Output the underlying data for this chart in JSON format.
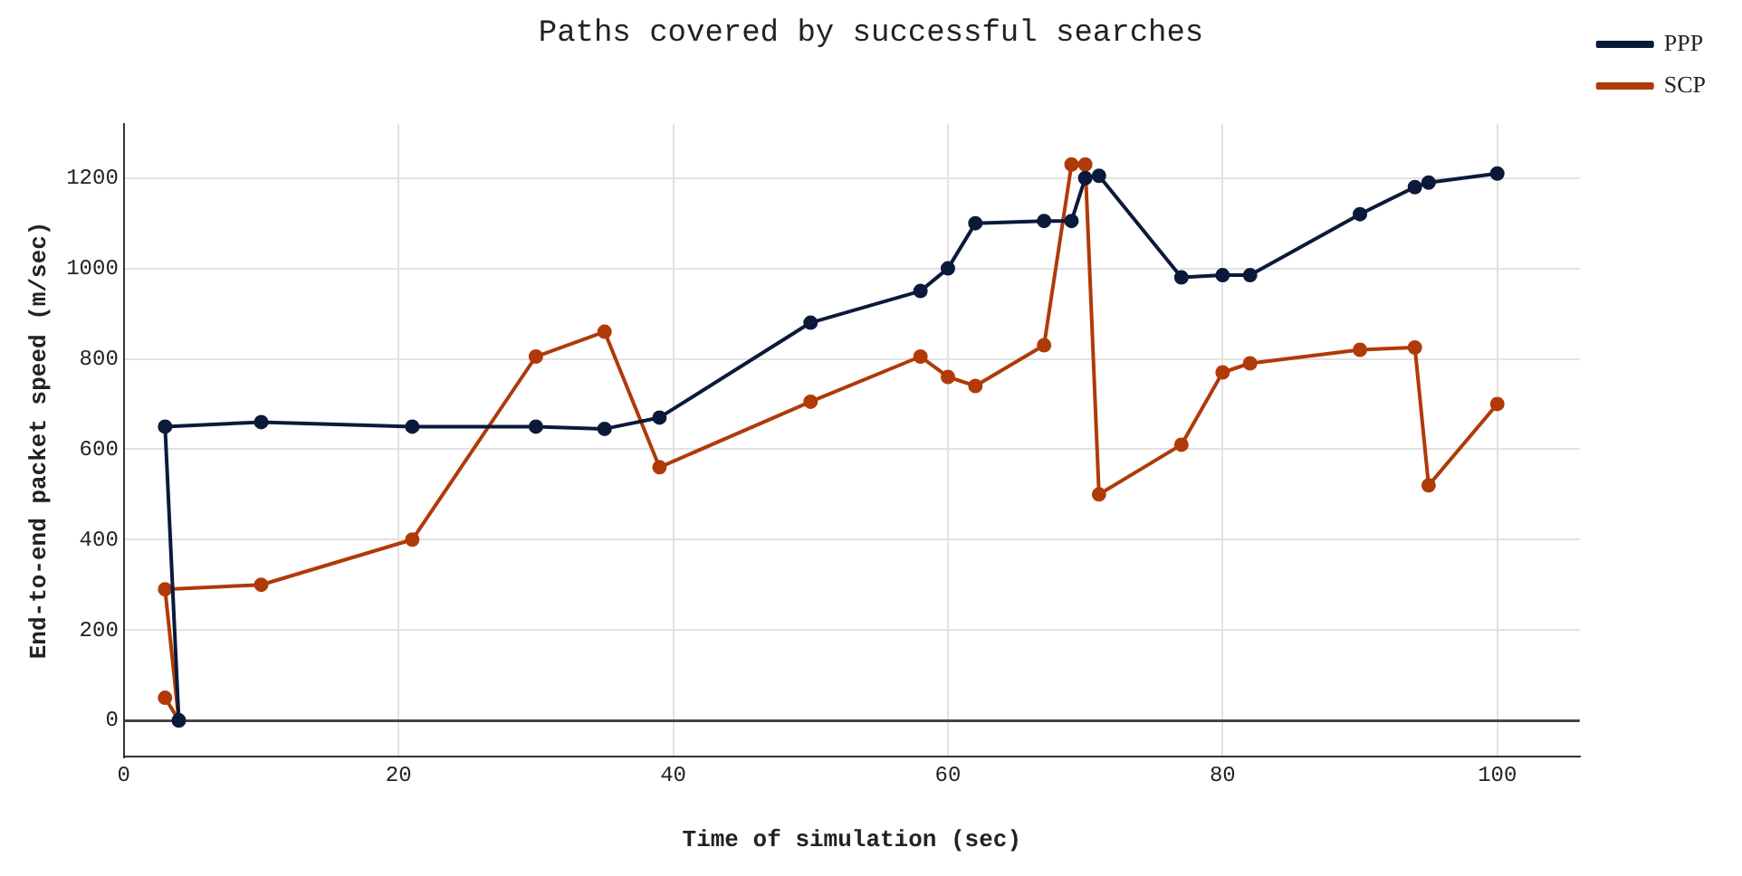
{
  "chart_data": {
    "type": "line",
    "title": "Paths covered by successful searches",
    "xlabel": "Time of simulation (sec)",
    "ylabel": "End-to-end packet speed (m/sec)",
    "xlim": [
      0,
      106
    ],
    "xticks": [
      0,
      20,
      40,
      60,
      80,
      100
    ],
    "ylim": [
      -80,
      1320
    ],
    "yticks": [
      0,
      200,
      400,
      600,
      800,
      1000,
      1200
    ],
    "grid": true,
    "legend": "top right",
    "marker": "circle",
    "line_style": "solid",
    "series": [
      {
        "name": "PPP",
        "color": "#0b1a3a",
        "x": [
          4,
          3,
          10,
          21,
          30,
          35,
          39,
          50,
          58,
          60,
          62,
          67,
          69,
          70,
          71,
          77,
          80,
          82,
          90,
          94,
          95,
          100
        ],
        "values": [
          0,
          650,
          660,
          650,
          650,
          645,
          670,
          880,
          950,
          1000,
          1100,
          1105,
          1105,
          1200,
          1205,
          980,
          985,
          985,
          1120,
          1180,
          1190,
          1210
        ]
      },
      {
        "name": "SCP",
        "color": "#b03a08",
        "x": [
          3,
          4,
          3,
          10,
          21,
          30,
          35,
          39,
          50,
          58,
          60,
          62,
          67,
          69,
          70,
          71,
          77,
          80,
          82,
          90,
          94,
          95,
          100
        ],
        "values": [
          50,
          0,
          290,
          300,
          400,
          805,
          860,
          560,
          705,
          805,
          760,
          740,
          830,
          1230,
          1230,
          500,
          610,
          770,
          790,
          820,
          825,
          520,
          700
        ]
      }
    ]
  }
}
